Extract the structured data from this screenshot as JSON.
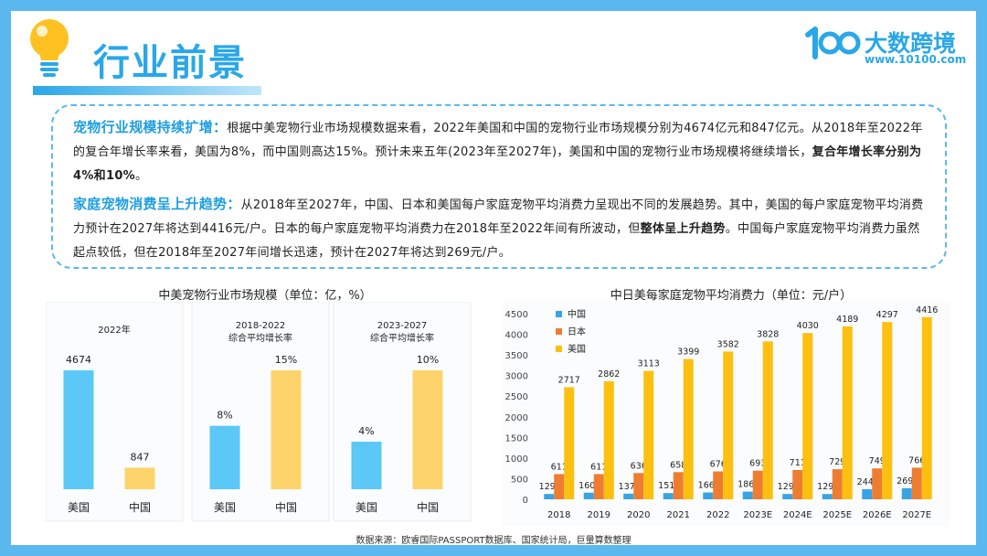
{
  "header": {
    "title": "行业前景",
    "logo_name": "大数跨境",
    "logo_url": "www.10100.com"
  },
  "summary": {
    "p1_lead": "宠物行业规模持续扩增：",
    "p1_text": "根据中美宠物行业市场规模数据来看，2022年美国和中国的宠物行业市场规模分别为4674亿元和847亿元。从2018年至2022年的复合年增长率来看，美国为8%，而中国则高达15%。预计未来五年(2023年至2027年)，美国和中国的宠物行业市场规模将继续增长，",
    "p1_bold": "复合年增长率分别为4%和10%",
    "p1_end": "。",
    "p2_lead": "家庭宠物消费呈上升趋势：",
    "p2_text": "从2018年至2027年，中国、日本和美国每户家庭宠物平均消费力呈现出不同的发展趋势。其中，美国的每户家庭宠物平均消费力预计在2027年将达到4416元/户。日本的每户家庭宠物平均消费力在2018年至2022年间有所波动，但",
    "p2_bold": "整体呈上升趋势",
    "p2_end": "。中国每户家庭宠物平均消费力虽然起点较低，但在2018年至2027年间增长迅速，预计在2027年将达到269元/户。"
  },
  "colors": {
    "usa": "#5bc8f7",
    "china": "#fdd46b",
    "cn": "#3aa3e3",
    "jp": "#ed7d31",
    "us": "#fdbf10"
  },
  "chart_data": [
    {
      "type": "bar",
      "title": "中美宠物行业市场规模（单位：亿，%）",
      "panels": [
        {
          "title": "2022年",
          "subtitle": "",
          "categories": [
            "美国",
            "中国"
          ],
          "values": [
            4674,
            847
          ],
          "labels": [
            "4674",
            "847"
          ]
        },
        {
          "title": "2018-2022",
          "subtitle": "综合平均增长率",
          "categories": [
            "美国",
            "中国"
          ],
          "values": [
            8,
            15
          ],
          "labels": [
            "8%",
            "15%"
          ]
        },
        {
          "title": "2023-2027",
          "subtitle": "综合平均增长率",
          "categories": [
            "美国",
            "中国"
          ],
          "values": [
            4,
            10
          ],
          "labels": [
            "4%",
            "10%"
          ]
        }
      ]
    },
    {
      "type": "bar",
      "title": "中日美每家庭宠物平均消费力（单位：元/户）",
      "categories": [
        "2018",
        "2019",
        "2020",
        "2021",
        "2022",
        "2023E",
        "2024E",
        "2025E",
        "2026E",
        "2027E"
      ],
      "series": [
        {
          "name": "中国",
          "values": [
            129,
            160,
            137,
            151,
            166,
            186,
            129,
            129,
            244,
            269
          ]
        },
        {
          "name": "日本",
          "values": [
            611,
            611,
            636,
            658,
            676,
            693,
            711,
            729,
            749,
            766
          ]
        },
        {
          "name": "美国",
          "values": [
            2717,
            2862,
            3113,
            3399,
            3582,
            3828,
            4030,
            4189,
            4297,
            4416
          ]
        }
      ],
      "ylim": [
        0,
        4500
      ],
      "yticks": [
        0,
        500,
        1000,
        1500,
        2000,
        2500,
        3000,
        3500,
        4000,
        4500
      ],
      "legend": "top-left",
      "grid": false
    }
  ],
  "footer": {
    "source": "数据来源：欧睿国际PASSPORT数据库、国家统计局，巨量算数整理"
  }
}
